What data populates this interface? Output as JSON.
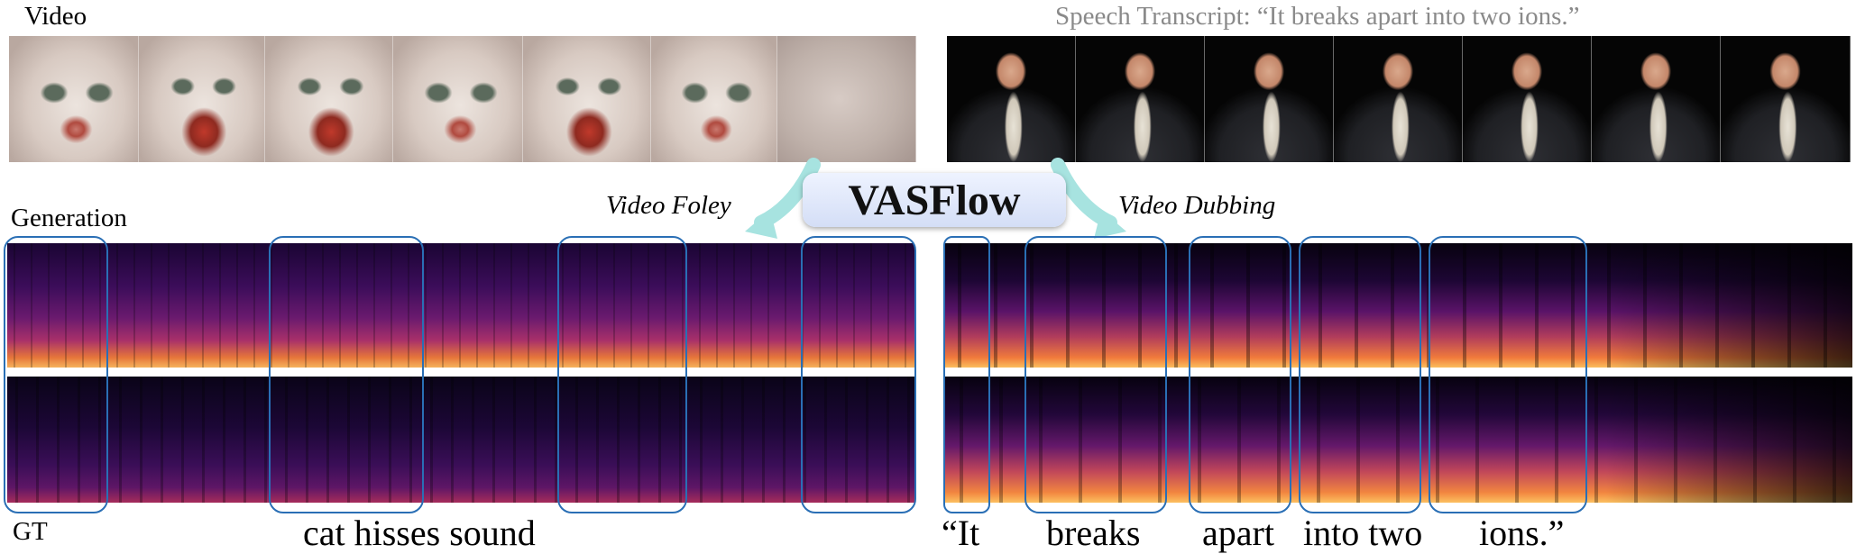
{
  "labels": {
    "video": "Video",
    "speech_transcript": "Speech Transcript: “It breaks apart into two ions.”",
    "generation": "Generation",
    "gt": "GT",
    "video_foley": "Video Foley",
    "video_dubbing": "Video Dubbing",
    "title": "VASFlow"
  },
  "foley_caption": "cat hisses sound",
  "dubbing_words": [
    "“It",
    "breaks",
    "apart",
    "into two",
    "ions.”"
  ],
  "icons": {
    "left_arrow": "curved-arrow-left-icon",
    "right_arrow": "curved-arrow-right-icon"
  },
  "colors": {
    "box_outline": "#2a6fb5",
    "arrow": "#a7e3e0",
    "banner_bg": "#dbe4f8",
    "transcript_text": "#8a8a8a"
  }
}
